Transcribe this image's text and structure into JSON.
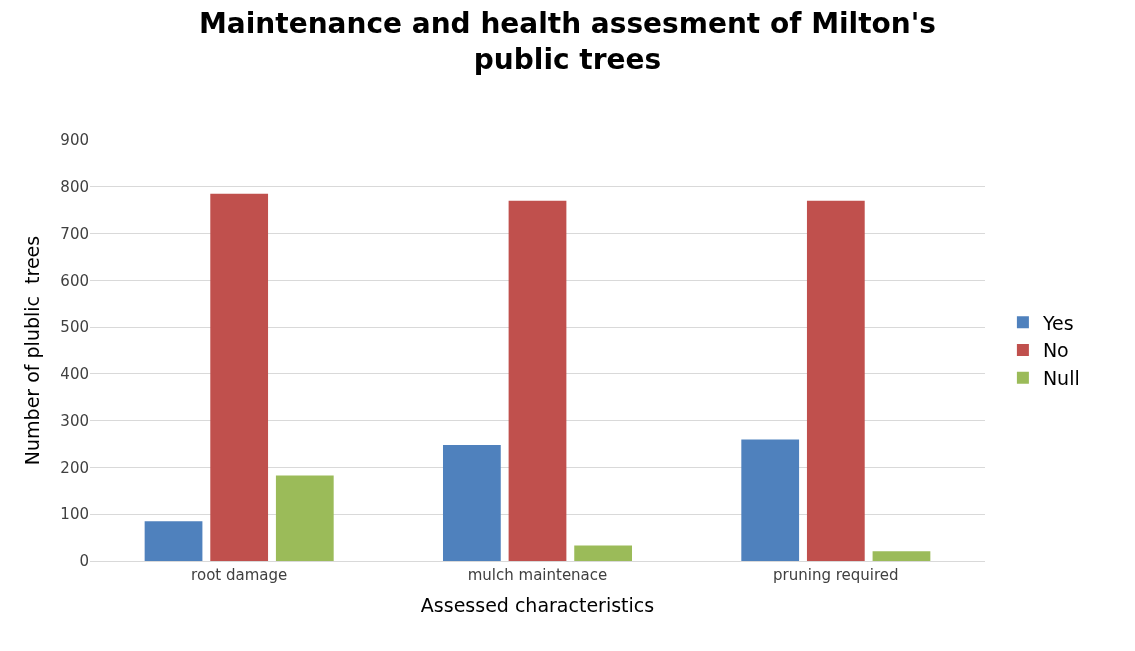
{
  "chart_data": {
    "type": "bar",
    "title": "Maintenance and health assesment of Milton's public trees",
    "xlabel": "Assessed characteristics",
    "ylabel": "Number of plublic  trees",
    "categories": [
      "root damage",
      "mulch maintenace",
      "pruning required"
    ],
    "series": [
      {
        "name": "Yes",
        "color": "#4f81bd",
        "values": [
          85,
          248,
          260
        ]
      },
      {
        "name": "No",
        "color": "#c0504d",
        "values": [
          785,
          770,
          770
        ]
      },
      {
        "name": "Null",
        "color": "#9bbb59",
        "values": [
          183,
          33,
          21
        ]
      }
    ],
    "ylim": [
      0,
      900
    ],
    "yticks": [
      0,
      100,
      200,
      300,
      400,
      500,
      600,
      700,
      800,
      900
    ],
    "grid": "y",
    "legend": "right"
  }
}
